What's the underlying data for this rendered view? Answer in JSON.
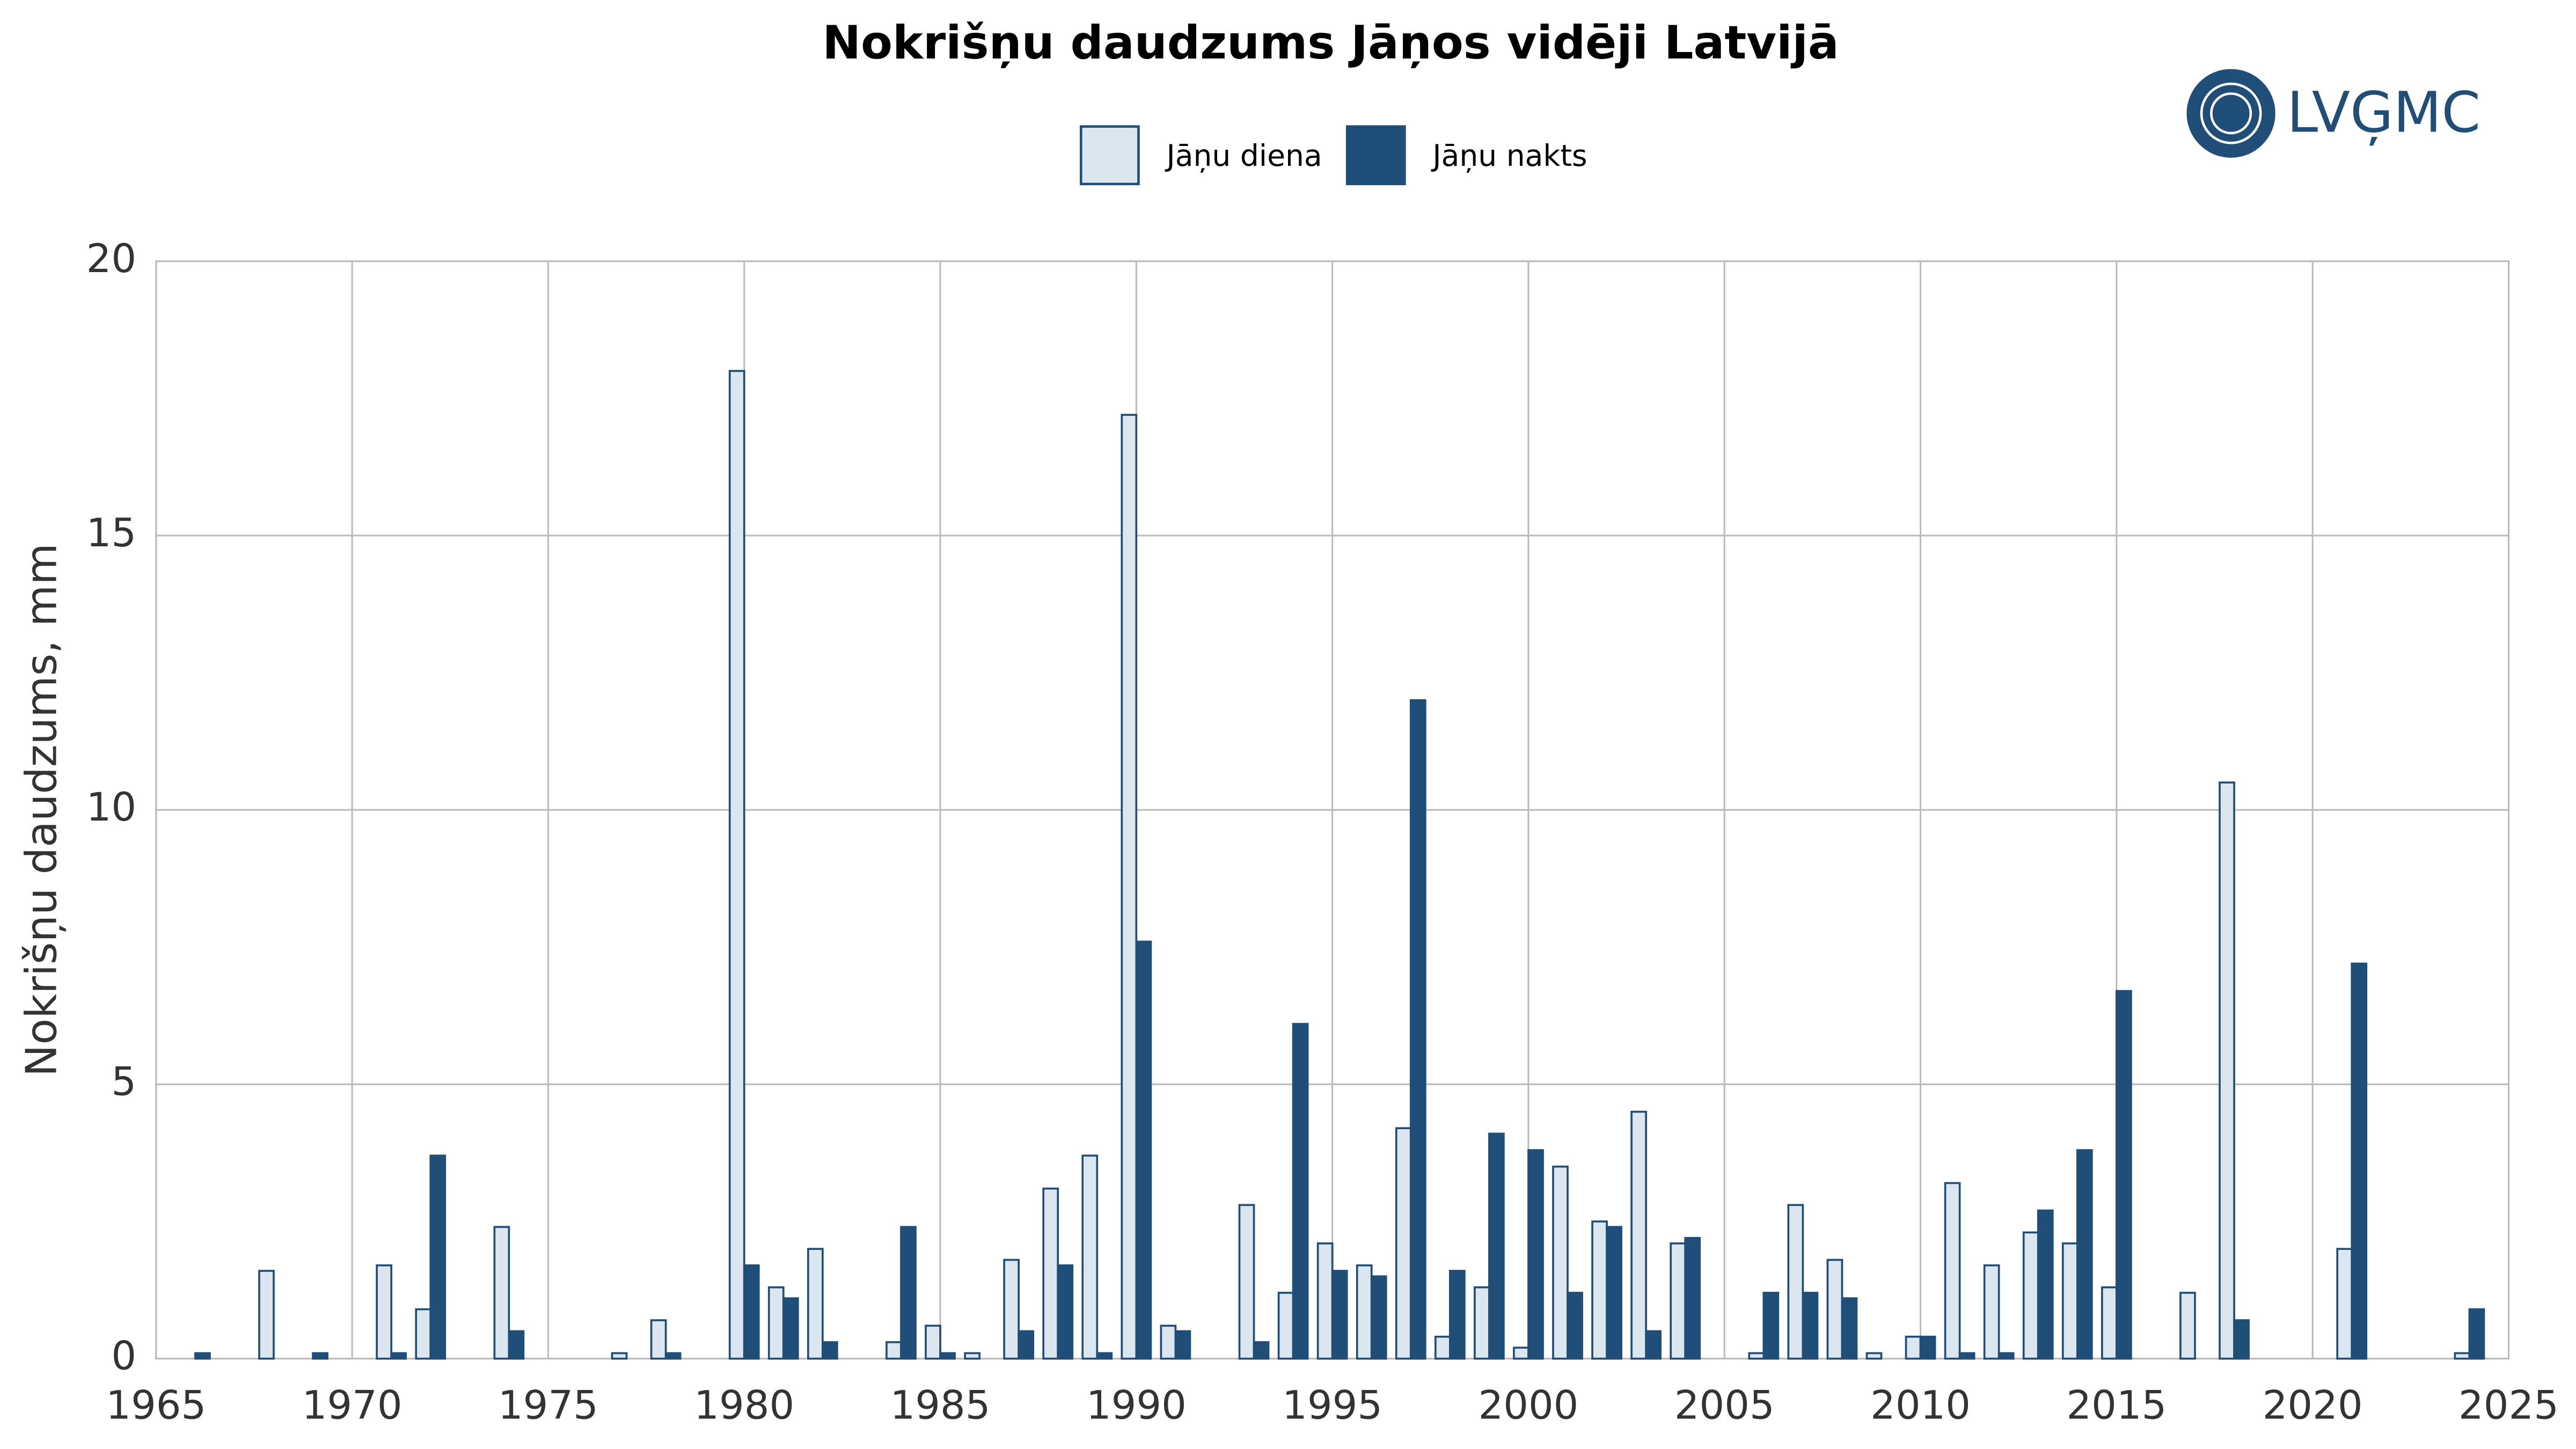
{
  "logo": "LVĢMC",
  "chart_data": {
    "type": "bar",
    "title": "Nokrišņu daudzums Jāņos vidēji Latvijā",
    "y_label": "Nokrišņu daudzums, mm",
    "x": [
      1966,
      1967,
      1968,
      1969,
      1970,
      1971,
      1972,
      1973,
      1974,
      1975,
      1976,
      1977,
      1978,
      1979,
      1980,
      1981,
      1982,
      1983,
      1984,
      1985,
      1986,
      1987,
      1988,
      1989,
      1990,
      1991,
      1992,
      1993,
      1994,
      1995,
      1996,
      1997,
      1998,
      1999,
      2000,
      2001,
      2002,
      2003,
      2004,
      2005,
      2006,
      2007,
      2008,
      2009,
      2010,
      2011,
      2012,
      2013,
      2014,
      2015,
      2016,
      2017,
      2018,
      2019,
      2020,
      2021,
      2022,
      2023,
      2024
    ],
    "series": [
      {
        "name": "Jāņu diena",
        "color": "#dce6ef",
        "edge": "#1f4e79",
        "values": [
          0,
          0,
          1.6,
          0,
          0,
          1.7,
          0.9,
          0,
          2.4,
          0,
          0,
          0.1,
          0.7,
          0,
          18.0,
          1.3,
          2.0,
          0,
          0.3,
          0.6,
          0.1,
          1.8,
          3.1,
          3.7,
          17.2,
          0.6,
          0,
          2.8,
          1.2,
          2.1,
          1.7,
          4.2,
          0.4,
          1.3,
          0.2,
          3.5,
          2.5,
          4.5,
          2.1,
          0,
          0.1,
          2.8,
          1.8,
          0.1,
          0.4,
          3.2,
          1.7,
          2.3,
          2.1,
          1.3,
          0,
          1.2,
          10.5,
          0,
          0,
          2.0,
          0,
          0,
          0.1
        ]
      },
      {
        "name": "Jāņu nakts",
        "color": "#1f4e79",
        "edge": "#1f4e79",
        "values": [
          0.1,
          0,
          0,
          0.1,
          0,
          0.1,
          3.7,
          0,
          0.5,
          0,
          0,
          0,
          0.1,
          0,
          1.7,
          1.1,
          0.3,
          0,
          2.4,
          0.1,
          0,
          0.5,
          1.7,
          0.1,
          7.6,
          0.5,
          0,
          0.3,
          6.1,
          1.6,
          1.5,
          12.0,
          1.6,
          4.1,
          3.8,
          1.2,
          2.4,
          0.5,
          2.2,
          0,
          1.2,
          1.2,
          1.1,
          0,
          0.4,
          0.1,
          0.1,
          2.7,
          3.8,
          6.7,
          0,
          0,
          0.7,
          0,
          0,
          7.2,
          0,
          0,
          0.9
        ]
      }
    ],
    "xlim": [
      1965,
      2025
    ],
    "xticks": [
      1965,
      1970,
      1975,
      1980,
      1985,
      1990,
      1995,
      2000,
      2005,
      2010,
      2015,
      2020,
      2025
    ],
    "ylim": [
      0,
      20
    ],
    "yticks": [
      0,
      5,
      10,
      15,
      20
    ],
    "grid": true
  }
}
